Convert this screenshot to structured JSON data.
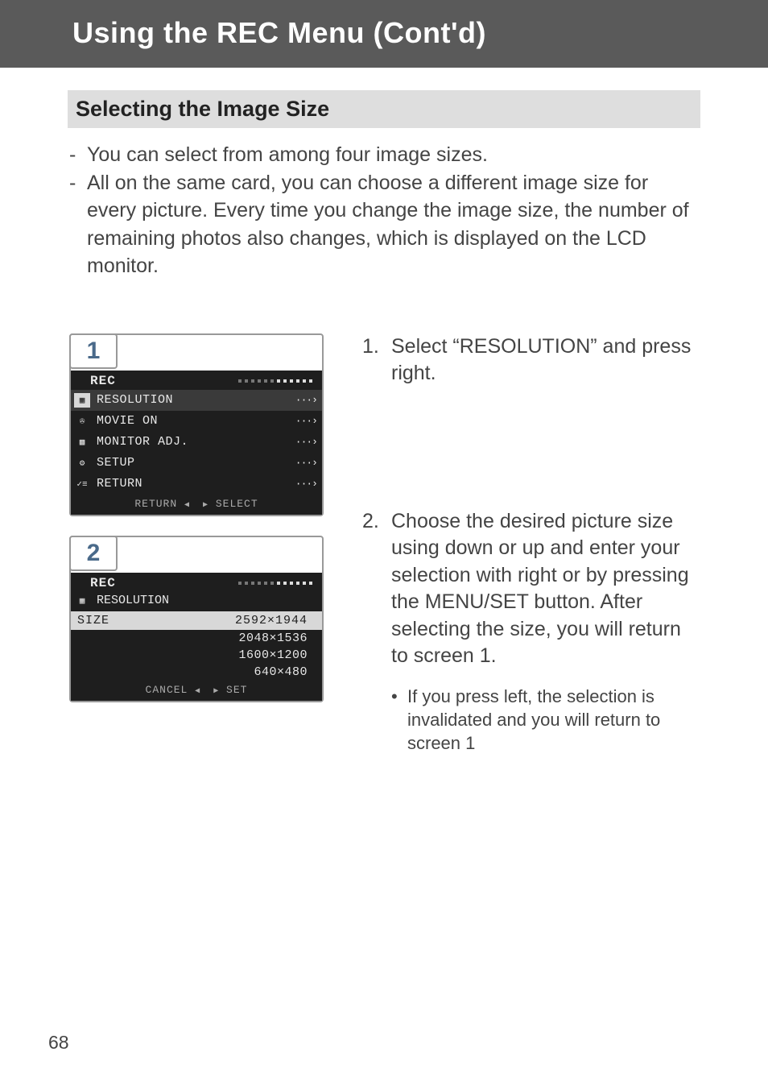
{
  "header": {
    "title": "Using the REC Menu (Cont'd)"
  },
  "section": {
    "heading": "Selecting the Image Size"
  },
  "intro": {
    "lines": [
      "You can select from among four image sizes.",
      "All on the same card,  you can choose a different image size for every picture. Every time you change the image size, the number of remaining photos also changes, which is displayed on the LCD monitor."
    ]
  },
  "steps": [
    {
      "num": "1.",
      "text": "Select “RESOLUTION” and press right."
    },
    {
      "num": "2.",
      "text": "Choose the desired picture size using down or up and enter your selection with right or by pressing the MENU/SET button. After selecting the size, you will return to screen 1.",
      "bullet": "If you press left, the selection is invalidated and you will return to screen 1"
    }
  ],
  "screen1": {
    "badge": "1",
    "title": "REC",
    "dotsActive": 6,
    "dotsTotal": 12,
    "rows": [
      {
        "icon_name": "grid-icon",
        "glyph": "▦",
        "label": "RESOLUTION",
        "selected": true
      },
      {
        "icon_name": "movie-icon",
        "glyph": "✇",
        "label": "MOVIE ON",
        "selected": false
      },
      {
        "icon_name": "monitor-icon",
        "glyph": "▩",
        "label": "MONITOR ADJ.",
        "selected": false
      },
      {
        "icon_name": "setup-icon",
        "glyph": "⚙",
        "label": "SETUP",
        "selected": false
      },
      {
        "icon_name": "return-icon",
        "glyph": "✓≡",
        "label": "RETURN",
        "selected": false
      }
    ],
    "footer_left": "RETURN",
    "footer_right": "SELECT"
  },
  "screen2": {
    "badge": "2",
    "title": "REC",
    "dotsActive": 6,
    "dotsTotal": 12,
    "sub_icon_name": "grid-icon",
    "sub_glyph": "▦",
    "sub_label": "RESOLUTION",
    "size_head_left": "SIZE",
    "size_head_right": "2592×1944",
    "size_rows": [
      "2048×1536",
      "1600×1200",
      "640×480"
    ],
    "footer_left": "CANCEL",
    "footer_right": "SET"
  },
  "colors": {
    "header_bg": "#5a5a5a",
    "section_bg": "#dedede",
    "lcd_bg": "#1e1e1e",
    "lcd_fg": "#e8e8e8",
    "badge_color": "#4a6a8a"
  },
  "page_number": "68"
}
